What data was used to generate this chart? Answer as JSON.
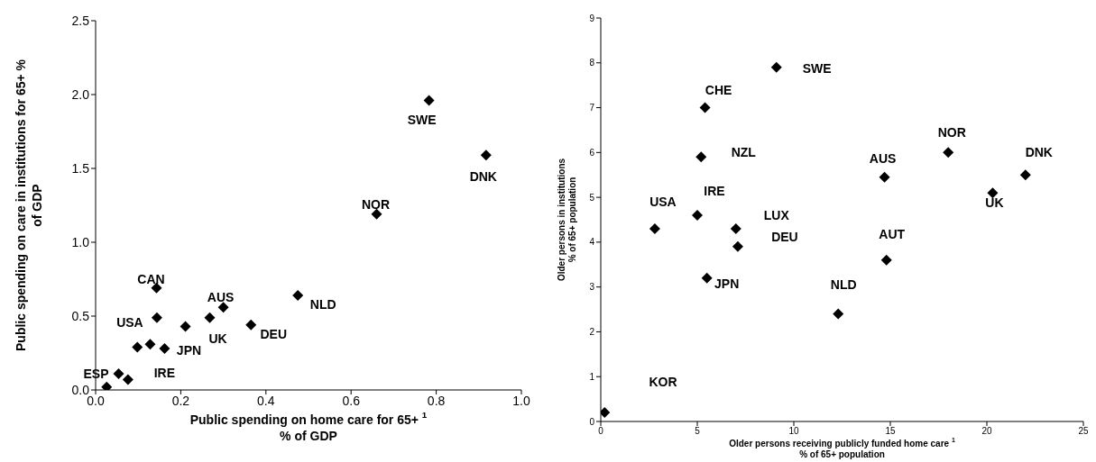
{
  "chart_data": [
    {
      "type": "scatter",
      "xlabel": "Public spending on home care for 65+ $^{1}$\n% of GDP",
      "ylabel": "Public spending on care in institutions for 65+ %\nof GDP",
      "x": [
        0.783,
        0.917,
        0.66,
        0.475,
        0.143,
        0.3,
        0.144,
        0.268,
        0.211,
        0.365,
        0.098,
        0.128,
        0.162,
        0.054,
        0.076,
        0.026
      ],
      "series": [
        {
          "color": "#000000",
          "values": [
            1.96,
            1.59,
            1.19,
            0.64,
            0.69,
            0.56,
            0.49,
            0.49,
            0.43,
            0.44,
            0.29,
            0.31,
            0.28,
            0.11,
            0.07,
            0.02
          ]
        }
      ],
      "xlim": [
        0,
        1
      ],
      "ylim": [
        0,
        2.5
      ],
      "xticks": [
        {
          "value": 0,
          "label": "0.0"
        },
        {
          "value": 0.2,
          "label": "0.2"
        },
        {
          "value": 0.4,
          "label": "0.4"
        },
        {
          "value": 0.6,
          "label": "0.6"
        },
        {
          "value": 0.8,
          "label": "0.8"
        },
        {
          "value": 1,
          "label": "1.0"
        }
      ],
      "yticks": [
        {
          "value": 0,
          "label": "0.0"
        },
        {
          "value": 0.5,
          "label": "0.5"
        },
        {
          "value": 1,
          "label": "1.0"
        },
        {
          "value": 1.5,
          "label": "1.5"
        },
        {
          "value": 2,
          "label": "2.0"
        },
        {
          "value": 2.5,
          "label": "2.5"
        }
      ],
      "marker": "diamond",
      "grid": false,
      "legend": false,
      "annotations": [
        {
          "text": "SWE",
          "x": 0.783,
          "y": 1.96
        },
        {
          "text": "DNK",
          "x": 0.917,
          "y": 1.59
        },
        {
          "text": "NOR",
          "x": 0.66,
          "y": 1.19
        },
        {
          "text": "NLD",
          "x": 0.475,
          "y": 0.64
        },
        {
          "text": "CAN",
          "x": 0.143,
          "y": 0.69
        },
        {
          "text": "AUS",
          "x": 0.3,
          "y": 0.56
        },
        {
          "text": "USA",
          "x": 0.144,
          "y": 0.49
        },
        {
          "text": "UK",
          "x": 0.268,
          "y": 0.49
        },
        {
          "text": "DEU",
          "x": 0.365,
          "y": 0.44
        },
        {
          "text": "JPN",
          "x": 0.162,
          "y": 0.28
        },
        {
          "text": "IRE",
          "x": 0.128,
          "y": 0.31
        },
        {
          "text": "ESP",
          "x": 0.054,
          "y": 0.11
        }
      ]
    },
    {
      "type": "scatter",
      "xlabel": "Older persons receiving publicly funded home care $^{1}$\n% of 65+ population",
      "ylabel": "Older persons in institutions\n% of 65+ population",
      "x": [
        9.1,
        5.4,
        5.2,
        18.0,
        14.7,
        22.0,
        20.3,
        5.0,
        2.8,
        7.0,
        7.1,
        14.8,
        5.5,
        12.3,
        0.2
      ],
      "series": [
        {
          "color": "#000000",
          "values": [
            7.9,
            7.0,
            5.9,
            6.0,
            5.45,
            5.5,
            5.1,
            4.6,
            4.3,
            4.3,
            3.9,
            3.6,
            3.2,
            2.4,
            0.2
          ]
        }
      ],
      "xlim": [
        0,
        25
      ],
      "ylim": [
        0,
        9
      ],
      "xticks": [
        0,
        5,
        10,
        15,
        20,
        25
      ],
      "yticks": [
        0,
        1,
        2,
        3,
        4,
        5,
        6,
        7,
        8,
        9
      ],
      "marker": "diamond",
      "grid": false,
      "legend": false,
      "annotations": [
        {
          "text": "SWE",
          "x": 9.1,
          "y": 7.9
        },
        {
          "text": "CHE",
          "x": 5.4,
          "y": 7.0
        },
        {
          "text": "NZL",
          "x": 5.2,
          "y": 5.9
        },
        {
          "text": "NOR",
          "x": 18.0,
          "y": 6.0
        },
        {
          "text": "AUS",
          "x": 14.7,
          "y": 5.45
        },
        {
          "text": "DNK",
          "x": 22.0,
          "y": 5.5
        },
        {
          "text": "UK",
          "x": 20.3,
          "y": 5.1
        },
        {
          "text": "IRE",
          "x": 5.0,
          "y": 4.6
        },
        {
          "text": "USA",
          "x": 2.8,
          "y": 4.3
        },
        {
          "text": "LUX",
          "x": 7.0,
          "y": 4.3
        },
        {
          "text": "DEU",
          "x": 7.1,
          "y": 3.9
        },
        {
          "text": "AUT",
          "x": 14.8,
          "y": 3.6
        },
        {
          "text": "JPN",
          "x": 5.5,
          "y": 3.2
        },
        {
          "text": "NLD",
          "x": 12.3,
          "y": 2.4
        },
        "KOR"
      ]
    }
  ]
}
